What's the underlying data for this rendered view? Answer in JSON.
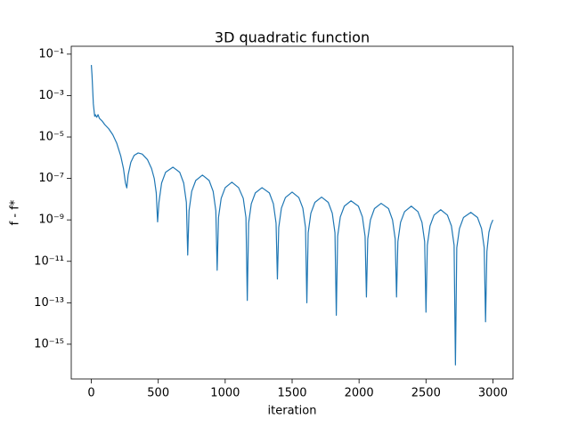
{
  "chart_data": {
    "type": "line",
    "title": "3D quadratic function",
    "xlabel": "iteration",
    "ylabel": "f - f*",
    "yscale": "log",
    "color": "#1f77b4",
    "xlim": [
      -150,
      3150
    ],
    "xticks": [
      0,
      500,
      1000,
      1500,
      2000,
      2500,
      3000
    ],
    "ylim": [
      2.1e-17,
      0.24
    ],
    "yticks": [
      {
        "value": 0.1,
        "label": "10⁻¹"
      },
      {
        "value": 0.001,
        "label": "10⁻³"
      },
      {
        "value": 1e-05,
        "label": "10⁻⁵"
      },
      {
        "value": 1e-07,
        "label": "10⁻⁷"
      },
      {
        "value": 1e-09,
        "label": "10⁻⁹"
      },
      {
        "value": 1e-11,
        "label": "10⁻¹¹"
      },
      {
        "value": 1e-13,
        "label": "10⁻¹³"
      },
      {
        "value": 1e-15,
        "label": "10⁻¹⁵"
      }
    ],
    "x": [
      0,
      5,
      10,
      15,
      20,
      25,
      30,
      40,
      50,
      60,
      80,
      100,
      130,
      160,
      190,
      220,
      240,
      255,
      265,
      275,
      295,
      320,
      350,
      380,
      420,
      450,
      470,
      485,
      495,
      505,
      525,
      555,
      610,
      660,
      690,
      710,
      720,
      730,
      750,
      780,
      830,
      880,
      910,
      930,
      940,
      950,
      970,
      1000,
      1050,
      1100,
      1135,
      1155,
      1165,
      1175,
      1195,
      1225,
      1275,
      1330,
      1360,
      1380,
      1390,
      1400,
      1420,
      1450,
      1500,
      1550,
      1580,
      1600,
      1610,
      1620,
      1640,
      1670,
      1720,
      1770,
      1800,
      1820,
      1830,
      1840,
      1860,
      1890,
      1940,
      1995,
      2025,
      2045,
      2055,
      2065,
      2085,
      2115,
      2165,
      2220,
      2250,
      2270,
      2280,
      2290,
      2310,
      2340,
      2390,
      2440,
      2470,
      2490,
      2500,
      2510,
      2530,
      2560,
      2610,
      2660,
      2690,
      2710,
      2720,
      2730,
      2750,
      2780,
      2835,
      2885,
      2915,
      2935,
      2945,
      2955,
      2970,
      2985,
      3000
    ],
    "values": [
      0.03,
      0.01,
      0.002,
      0.0004,
      0.0002,
      0.0001,
      0.00012,
      9e-05,
      0.00012,
      8e-05,
      6e-05,
      4e-05,
      2.5e-05,
      1.3e-05,
      5e-06,
      1.2e-06,
      3e-07,
      6e-08,
      3.5e-08,
      1.5e-07,
      6e-07,
      1.3e-06,
      1.7e-06,
      1.5e-06,
      8e-07,
      3e-07,
      1e-07,
      2e-08,
      8e-10,
      7e-09,
      6e-08,
      2e-07,
      3.5e-07,
      2e-07,
      6e-08,
      7e-09,
      2e-11,
      2.8e-09,
      2.4e-08,
      8e-08,
      1.45e-07,
      8e-08,
      2.4e-08,
      2.8e-09,
      3.7e-12,
      1.3e-09,
      1.1e-08,
      3.6e-08,
      6.6e-08,
      3.6e-08,
      1.1e-08,
      1.3e-09,
      1.3e-13,
      7e-10,
      6e-09,
      2e-08,
      3.6e-08,
      2e-08,
      6e-09,
      7e-10,
      1.4e-12,
      4.3e-10,
      3.7e-09,
      1.2e-08,
      2.2e-08,
      1.2e-08,
      3.7e-09,
      4.3e-10,
      1e-13,
      2.4e-10,
      2.1e-09,
      7e-09,
      1.26e-08,
      7e-09,
      2.1e-09,
      2.4e-10,
      2.5e-14,
      1.6e-10,
      1.4e-09,
      4.6e-09,
      8.3e-09,
      4.6e-09,
      1.4e-09,
      1.6e-10,
      1.9e-13,
      1.2e-10,
      1e-09,
      3.5e-09,
      6.3e-09,
      3.5e-09,
      1e-09,
      1.2e-10,
      1.9e-13,
      9e-11,
      7.6e-10,
      2.5e-09,
      4.6e-09,
      2.5e-09,
      7.6e-10,
      9e-11,
      3.5e-14,
      6e-11,
      5.1e-10,
      1.7e-09,
      3.1e-09,
      1.7e-09,
      5.1e-10,
      6e-11,
      1e-16,
      4.5e-11,
      3.8e-10,
      1.3e-09,
      2.3e-09,
      1.3e-09,
      3.8e-10,
      4.5e-11,
      1.2e-14,
      3e-11,
      2.5e-10,
      6e-10,
      1e-09
    ]
  }
}
